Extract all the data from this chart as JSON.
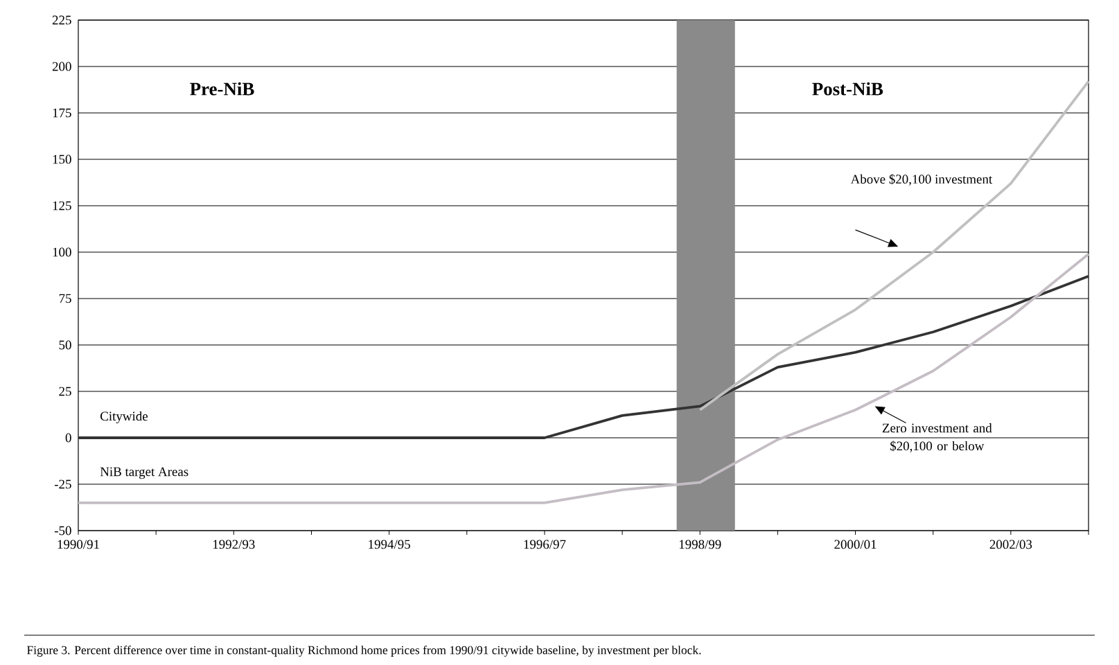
{
  "chart_data": {
    "type": "line",
    "categories": [
      "1990/91",
      null,
      "1992/93",
      null,
      "1994/95",
      null,
      "1996/97",
      null,
      "1998/99",
      null,
      "2000/01",
      null,
      "2002/03",
      null
    ],
    "series": [
      {
        "name": "Citywide",
        "color": "#333333",
        "values": [
          0,
          0,
          0,
          0,
          0,
          0,
          0,
          12,
          17,
          38,
          46,
          57,
          71,
          87
        ]
      },
      {
        "name": "NiB target Areas",
        "color": "#c4bec4",
        "values": [
          -35,
          -35,
          -35,
          -35,
          -35,
          -35,
          -35,
          -28,
          -24,
          -1,
          15,
          36,
          65,
          99
        ]
      },
      {
        "name": "Above $20,100 investment",
        "color": "#c0c0c0",
        "values": [
          null,
          null,
          null,
          null,
          null,
          null,
          null,
          null,
          15,
          45,
          69,
          100,
          137,
          192
        ]
      }
    ],
    "ylim": [
      -50,
      225
    ],
    "yticks": [
      -50,
      -25,
      0,
      25,
      50,
      75,
      100,
      125,
      150,
      175,
      200,
      225
    ],
    "grid": "y",
    "marker": "none",
    "line_style": "solid",
    "annotations": [
      "Pre-NiB",
      "Post-NiB",
      "Zero investment and $20,100 or below",
      "Figure 3. Percent difference over time in constant-quality Richmond home prices from 1990/91 citywide baseline, by investment per block."
    ]
  }
}
